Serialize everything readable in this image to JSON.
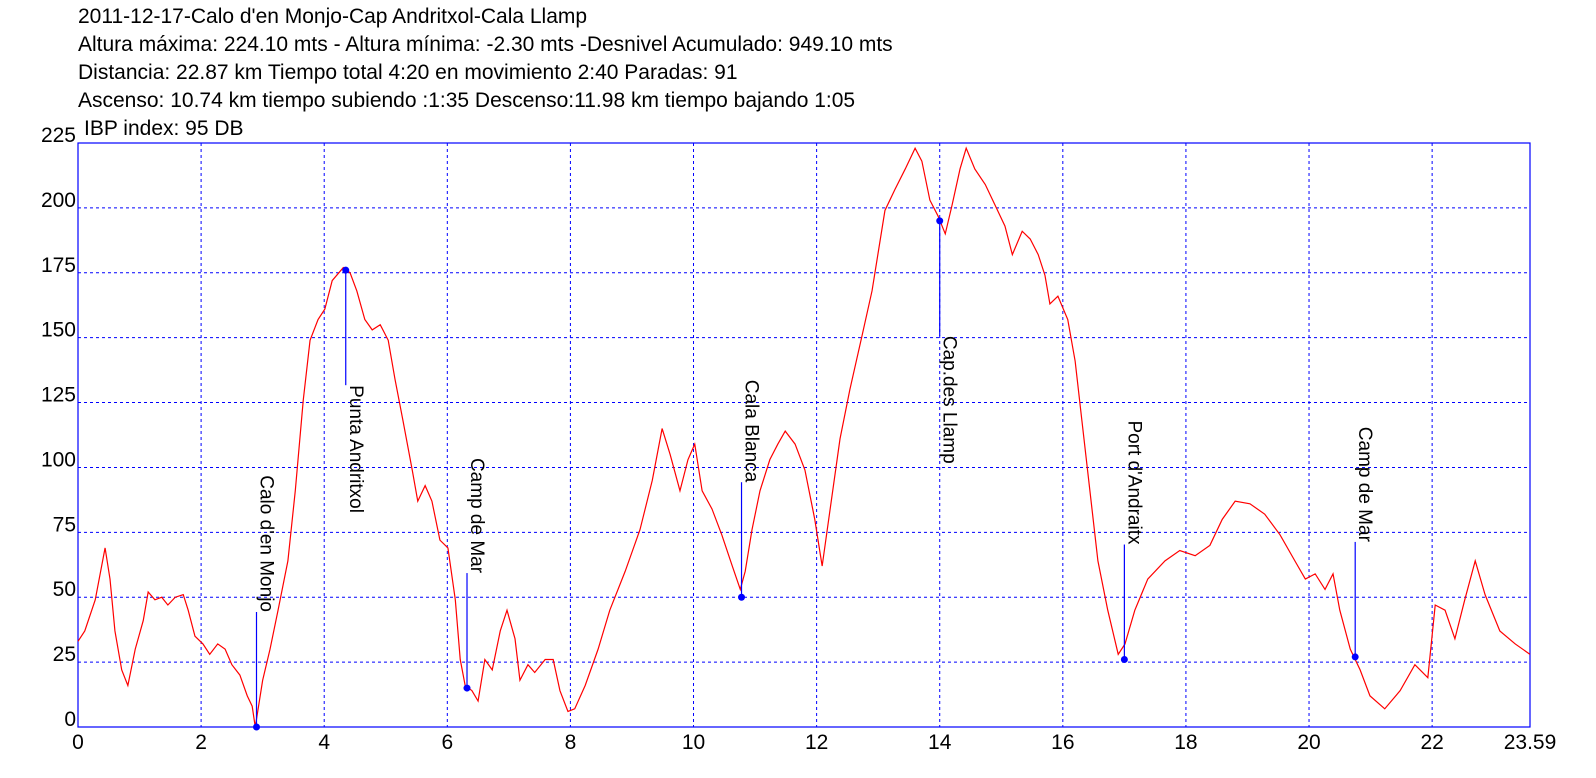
{
  "chart_data": {
    "type": "line",
    "title": "2011-12-17-Calo d'en Monjo-Cap Andritxol-Cala Llamp",
    "subtitle_lines": [
      "Altura máxima: 224.10 mts - Altura mínima: -2.30 mts -Desnivel Acumulado: 949.10 mts",
      "Distancia: 22.87 km  Tiempo total 4:20  en movimiento 2:40 Paradas: 91",
      "Ascenso: 10.74 km  tiempo subiendo :1:35  Descenso:11.98 km tiempo bajando 1:05",
      "IBP index: 95 DB"
    ],
    "xlim": [
      0,
      23.59
    ],
    "ylim": [
      0,
      225
    ],
    "xticks": [
      0,
      2,
      4,
      6,
      8,
      10,
      12,
      14,
      16,
      18,
      20,
      22,
      23.59
    ],
    "yticks": [
      0,
      25,
      50,
      75,
      100,
      125,
      150,
      175,
      200,
      225
    ],
    "grid": true,
    "grid_color": "#0000ff",
    "frame_color": "#0000ff",
    "x": [
      0,
      0.11,
      0.28,
      0.44,
      0.52,
      0.6,
      0.71,
      0.81,
      0.93,
      1.06,
      1.14,
      1.25,
      1.36,
      1.46,
      1.58,
      1.71,
      1.79,
      1.9,
      2.03,
      2.14,
      2.27,
      2.39,
      2.5,
      2.63,
      2.75,
      2.83,
      2.88,
      3.0,
      3.12,
      3.25,
      3.41,
      3.53,
      3.66,
      3.77,
      3.9,
      4.01,
      4.13,
      4.31,
      4.42,
      4.53,
      4.66,
      4.78,
      4.91,
      5.04,
      5.15,
      5.28,
      5.43,
      5.52,
      5.64,
      5.75,
      5.88,
      6.01,
      6.13,
      6.21,
      6.29,
      6.4,
      6.5,
      6.61,
      6.73,
      6.86,
      6.97,
      7.1,
      7.18,
      7.31,
      7.42,
      7.59,
      7.72,
      7.83,
      7.96,
      8.07,
      8.24,
      8.45,
      8.64,
      8.89,
      9.13,
      9.33,
      9.49,
      9.62,
      9.78,
      9.91,
      10.02,
      10.14,
      10.3,
      10.46,
      10.63,
      10.76,
      10.84,
      10.95,
      11.08,
      11.24,
      11.37,
      11.49,
      11.65,
      11.81,
      11.97,
      12.09,
      12.22,
      12.38,
      12.54,
      12.74,
      12.9,
      13.11,
      13.27,
      13.44,
      13.6,
      13.71,
      13.84,
      13.97,
      14.09,
      14.2,
      14.33,
      14.43,
      14.57,
      14.74,
      14.9,
      15.06,
      15.18,
      15.34,
      15.47,
      15.6,
      15.71,
      15.79,
      15.92,
      16.08,
      16.2,
      16.31,
      16.44,
      16.57,
      16.73,
      16.9,
      17.01,
      17.17,
      17.38,
      17.66,
      17.9,
      18.15,
      18.39,
      18.59,
      18.8,
      19.04,
      19.28,
      19.53,
      19.77,
      19.94,
      20.1,
      20.26,
      20.39,
      20.5,
      20.67,
      20.83,
      20.99,
      21.23,
      21.48,
      21.72,
      21.93,
      22.05,
      22.21,
      22.37,
      22.53,
      22.7,
      22.86,
      23.1,
      23.35,
      23.59
    ],
    "series": [
      {
        "color": "#ff0000",
        "values": [
          33,
          37,
          49,
          69,
          57,
          37,
          22,
          16,
          30,
          41,
          52,
          49,
          50,
          47,
          50,
          51,
          45,
          35,
          32,
          28,
          32,
          30,
          24,
          20,
          12,
          8,
          0,
          18,
          30,
          45,
          64,
          91,
          126,
          149,
          157,
          161,
          172,
          177,
          175,
          168,
          157,
          153,
          155,
          149,
          134,
          118,
          99,
          87,
          93,
          87,
          72,
          69,
          49,
          26,
          16,
          14,
          10,
          26,
          22,
          37,
          45,
          34,
          18,
          24,
          21,
          26,
          26,
          14,
          6,
          7,
          16,
          30,
          45,
          60,
          76,
          95,
          115,
          105,
          91,
          103,
          109,
          91,
          84,
          74,
          62,
          53,
          60,
          76,
          91,
          103,
          109,
          114,
          109,
          99,
          80,
          62,
          84,
          111,
          130,
          151,
          168,
          199,
          207,
          215,
          223,
          218,
          203,
          197,
          190,
          201,
          215,
          223,
          215,
          209,
          201,
          193,
          182,
          191,
          188,
          182,
          174,
          163,
          166,
          157,
          141,
          118,
          91,
          64,
          45,
          28,
          32,
          45,
          57,
          64,
          68,
          66,
          70,
          80,
          87,
          86,
          82,
          74,
          64,
          57,
          59,
          53,
          59,
          45,
          30,
          22,
          12,
          7,
          14,
          24,
          19,
          47,
          45,
          34,
          49,
          64,
          51,
          37,
          32,
          28
        ]
      }
    ],
    "waypoint_color": "#0000ff",
    "waypoints": [
      {
        "name": "Calo d'en Monjo",
        "x": 2.9,
        "y": 0
      },
      {
        "name": "Punta Andritxol",
        "x": 4.35,
        "y": 176
      },
      {
        "name": "Camp de Mar",
        "x": 6.32,
        "y": 15
      },
      {
        "name": "Cala Blanca",
        "x": 10.78,
        "y": 50
      },
      {
        "name": "Cap.des Llamp",
        "x": 14.0,
        "y": 195
      },
      {
        "name": "Port d'Andraitx",
        "x": 17.0,
        "y": 26
      },
      {
        "name": "Camp de Mar",
        "x": 20.75,
        "y": 27
      }
    ]
  }
}
